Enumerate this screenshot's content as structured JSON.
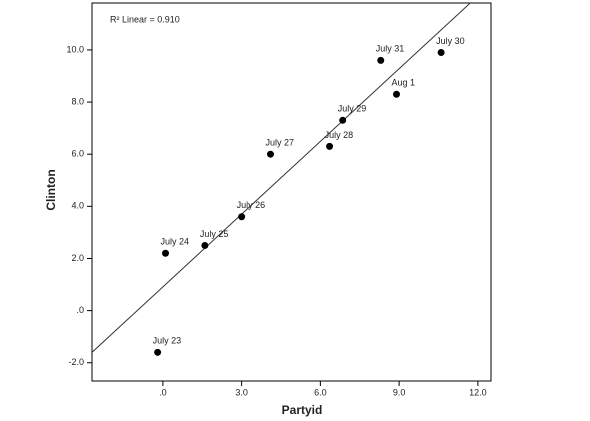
{
  "chart_data": {
    "type": "scatter",
    "annotation": "R² Linear = 0.910",
    "xlabel": "Partyid",
    "ylabel": "Clinton",
    "x": [
      -0.2,
      0.1,
      1.6,
      3.0,
      4.1,
      6.35,
      6.85,
      8.3,
      8.9,
      10.6
    ],
    "values": [
      -1.6,
      2.2,
      2.5,
      3.6,
      6.0,
      6.3,
      7.3,
      9.6,
      8.3,
      9.9
    ],
    "labels": [
      "July 23",
      "July 24",
      "July 25",
      "July 26",
      "July 27",
      "July 28",
      "July 29",
      "July 31",
      "Aug 1",
      "July 30"
    ],
    "color": "#000000",
    "trendline": {
      "slope": 0.93,
      "intercept": 0.91
    },
    "xlim": [
      -2.7,
      12.5
    ],
    "ylim": [
      -2.7,
      11.8
    ],
    "xticks": [
      {
        "value": 0,
        "label": ".0"
      },
      {
        "value": 3,
        "label": "3.0"
      },
      {
        "value": 6,
        "label": "6.0"
      },
      {
        "value": 9,
        "label": "9.0"
      },
      {
        "value": 12,
        "label": "12.0"
      }
    ],
    "yticks": [
      {
        "value": -2,
        "label": "-2.0"
      },
      {
        "value": 0,
        "label": ".0"
      },
      {
        "value": 2,
        "label": "2.0"
      },
      {
        "value": 4,
        "label": "4.0"
      },
      {
        "value": 6,
        "label": "6.0"
      },
      {
        "value": 8,
        "label": "8.0"
      },
      {
        "value": 10,
        "label": "10.0"
      }
    ]
  }
}
